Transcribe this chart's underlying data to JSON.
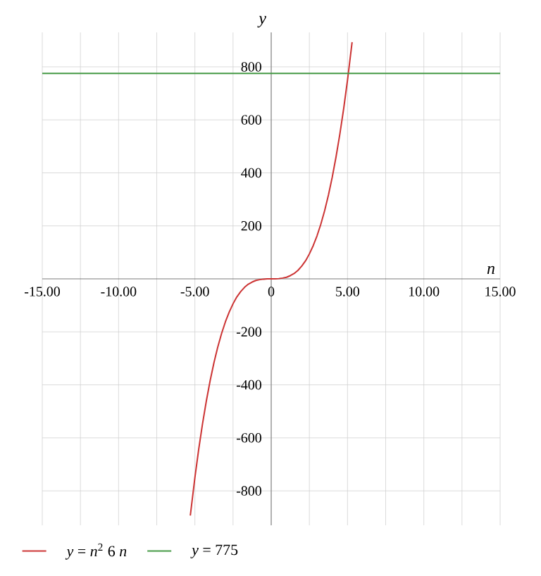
{
  "chart_data": {
    "type": "line",
    "xlabel": "n",
    "ylabel": "y",
    "xlim": [
      -15,
      15
    ],
    "ylim": [
      -930,
      930
    ],
    "xticks": [
      {
        "value": -15,
        "label": "-15.00"
      },
      {
        "value": -12.5,
        "label": null
      },
      {
        "value": -10,
        "label": "-10.00"
      },
      {
        "value": -7.5,
        "label": null
      },
      {
        "value": -5,
        "label": "-5.00"
      },
      {
        "value": -2.5,
        "label": null
      },
      0,
      {
        "value": 2.5,
        "label": null
      },
      {
        "value": 5,
        "label": "5.00"
      },
      {
        "value": 7.5,
        "label": null
      },
      {
        "value": 10,
        "label": "10.00"
      },
      {
        "value": 12.5,
        "label": null
      },
      {
        "value": 15,
        "label": "15.00"
      }
    ],
    "yticks": [
      -800,
      -600,
      -400,
      -200,
      200,
      400,
      600,
      800
    ],
    "grid": true,
    "legend": "bottom",
    "marker": "none",
    "line_style": "solid",
    "series": [
      {
        "name": "*y* = *n*$^{2}$ 6 *n*",
        "color": "#cc3333",
        "x": [
          -5.3,
          -5,
          -4.75,
          -4.5,
          -4.25,
          -4,
          -3.75,
          -3.5,
          -3.25,
          -3,
          -2.75,
          -2.5,
          -2.25,
          -2,
          -1.75,
          -1.5,
          -1.25,
          -1,
          -0.75,
          -0.5,
          -0.25,
          0,
          0.25,
          0.5,
          0.75,
          1,
          1.25,
          1.5,
          1.75,
          2,
          2.25,
          2.5,
          2.75,
          3,
          3.25,
          3.5,
          3.75,
          4,
          4.25,
          4.5,
          4.75,
          5,
          5.3
        ],
        "values": [
          -893,
          -750,
          -643,
          -547,
          -461,
          -384,
          -316,
          -257,
          -206,
          -162,
          -125,
          -94,
          -68,
          -48,
          -32,
          -20,
          -12,
          -6,
          -3,
          -1,
          0,
          0,
          0,
          1,
          3,
          6,
          12,
          20,
          32,
          48,
          68,
          94,
          125,
          162,
          206,
          257,
          316,
          384,
          461,
          547,
          643,
          750,
          893
        ]
      },
      {
        "name": "*y* = 775",
        "color": "#449944",
        "x": [
          -15,
          15
        ],
        "values": [
          775,
          775
        ]
      }
    ]
  }
}
